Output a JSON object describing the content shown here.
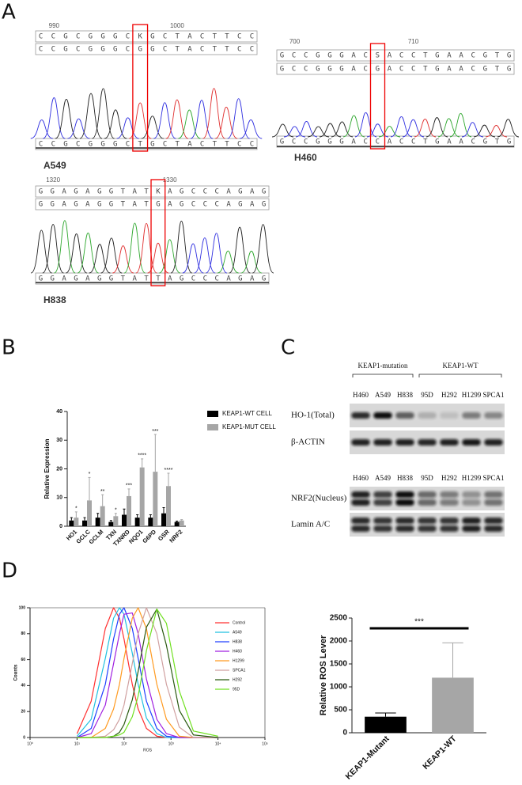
{
  "panel_labels": [
    "A",
    "B",
    "C",
    "D"
  ],
  "sequences": [
    {
      "positions": [
        990,
        1000
      ],
      "reference": "CCGCGGGCKGCTACTTCC",
      "consensus": "CCGCGGGCGGCTACTTCC",
      "called": "CCGCGGGCTGCTACTTCC",
      "sample": "A549"
    },
    {
      "positions": [
        700,
        710
      ],
      "reference": "GCCGGGACSACCTGAACGTG",
      "consensus": "GCCGGGACGACCTGAACGTG",
      "called": "GCCGGGACCACCTGAACGTG",
      "sample": "H460"
    },
    {
      "positions": [
        1320,
        1330
      ],
      "reference": "GGAGAGGTATKAGCCCAGAG",
      "consensus": "GGAGAGGTATGAGCCCAGAG",
      "called": "GGAGAGGTATTAGCCCAGAG",
      "sample": "H838"
    }
  ],
  "blots": {
    "groups": [
      "KEAP1-mutation",
      "KEAP1-WT"
    ],
    "lanes": [
      "H460",
      "A549",
      "H838",
      "95D",
      "H292",
      "H1299",
      "SPCA1"
    ],
    "rows": [
      "HO-1(Total)",
      "β-ACTIN",
      "NRF2(Nucleus)",
      "Lamin A/C"
    ]
  },
  "chart_data": [
    {
      "type": "bar",
      "categories": [
        "HO1",
        "GCLC",
        "GCLM",
        "TXN",
        "TXNRD",
        "NQO1",
        "G6PD",
        "GSR",
        "NRF2"
      ],
      "series": [
        {
          "name": "KEAP1-WT CELL",
          "color": "#000000",
          "values": [
            2,
            2,
            3,
            1.5,
            4,
            3,
            3,
            4.5,
            1.5
          ],
          "errors": [
            1,
            1,
            1.5,
            0.5,
            2,
            1,
            1,
            2,
            0.3
          ]
        },
        {
          "name": "KEAP1-MUT CELL",
          "color": "#a6a6a6",
          "values": [
            3,
            9,
            7,
            3.5,
            10.5,
            20.5,
            19,
            14,
            2
          ],
          "errors": [
            2,
            8,
            4,
            1,
            2.5,
            3,
            13,
            4.5,
            0.3
          ]
        }
      ],
      "ylabel": "Relative Expression",
      "ylim": [
        0,
        40
      ],
      "yticks": [
        0,
        10,
        20,
        30,
        40
      ],
      "annotations": [
        {
          "category": "HO1",
          "text": "*"
        },
        {
          "category": "GCLC",
          "text": "*"
        },
        {
          "category": "GCLM",
          "text": "**"
        },
        {
          "category": "TXN",
          "text": "*"
        },
        {
          "category": "TXNRD",
          "text": "***"
        },
        {
          "category": "NQO1",
          "text": "****"
        },
        {
          "category": "G6PD",
          "text": "***"
        },
        {
          "category": "GSR",
          "text": "****"
        }
      ],
      "legend": "right"
    },
    {
      "type": "line",
      "x": [
        10,
        20,
        40,
        60,
        80,
        100,
        150,
        200,
        300,
        500,
        800,
        1500,
        3000,
        10000
      ],
      "xscale": "log",
      "xlim": [
        1,
        100000
      ],
      "xticks": [
        {
          "value": 1,
          "label": "10⁰"
        },
        {
          "value": 10,
          "label": "10¹"
        },
        {
          "value": 100,
          "label": "10²"
        },
        {
          "value": 1000,
          "label": "10³"
        },
        {
          "value": 10000,
          "label": "10⁴"
        },
        {
          "value": 100000,
          "label": "10⁵"
        }
      ],
      "ylim": [
        0,
        100
      ],
      "yticks": [
        0,
        20,
        40,
        60,
        80,
        100
      ],
      "xlabel": "ROS",
      "ylabel": "Counts",
      "legend": "upper right",
      "series": [
        {
          "name": "Control",
          "color": "#ff3030",
          "values": [
            3,
            28,
            84,
            100,
            92,
            76,
            41,
            22,
            7,
            1,
            0,
            0,
            0,
            0
          ]
        },
        {
          "name": "A549",
          "color": "#20c0e0",
          "values": [
            1,
            14,
            61,
            92,
            100,
            95,
            65,
            41,
            15,
            3,
            0,
            0,
            0,
            0
          ]
        },
        {
          "name": "H838",
          "color": "#2040ff",
          "values": [
            0,
            7,
            41,
            76,
            95,
            100,
            84,
            61,
            28,
            7,
            1,
            0,
            0,
            0
          ]
        },
        {
          "name": "H460",
          "color": "#a020e0",
          "values": [
            0,
            3,
            25,
            57,
            80,
            95,
            96,
            80,
            45,
            14,
            3,
            0,
            0,
            0
          ]
        },
        {
          "name": "H1299",
          "color": "#ff9a20",
          "values": [
            0,
            0,
            7,
            22,
            41,
            61,
            92,
            100,
            84,
            41,
            14,
            1,
            0,
            0
          ]
        },
        {
          "name": "SPCA1",
          "color": "#d0a0a0",
          "values": [
            0,
            0,
            1,
            6,
            14,
            25,
            57,
            80,
            100,
            80,
            41,
            8,
            0,
            0
          ]
        },
        {
          "name": "H292",
          "color": "#2a5a10",
          "values": [
            0,
            0,
            0,
            1,
            4,
            10,
            29,
            51,
            85,
            99,
            71,
            21,
            2,
            0
          ]
        },
        {
          "name": "95D",
          "color": "#70e020",
          "values": [
            0,
            0,
            0,
            1,
            2,
            4,
            16,
            32,
            67,
            99,
            88,
            36,
            5,
            1
          ]
        }
      ]
    },
    {
      "type": "bar",
      "categories": [
        "KEAP1-Mutant",
        "KEAP1-WT"
      ],
      "values": [
        350,
        1200
      ],
      "errors": [
        80,
        760
      ],
      "colors": [
        "#000000",
        "#a6a6a6"
      ],
      "ylabel": "Relative ROS Lever",
      "ylim": [
        0,
        2500
      ],
      "yticks": [
        0,
        500,
        1000,
        1500,
        2000,
        2500
      ],
      "annotations": [
        {
          "category": "KEAP1-WT",
          "text": "***"
        }
      ]
    }
  ]
}
